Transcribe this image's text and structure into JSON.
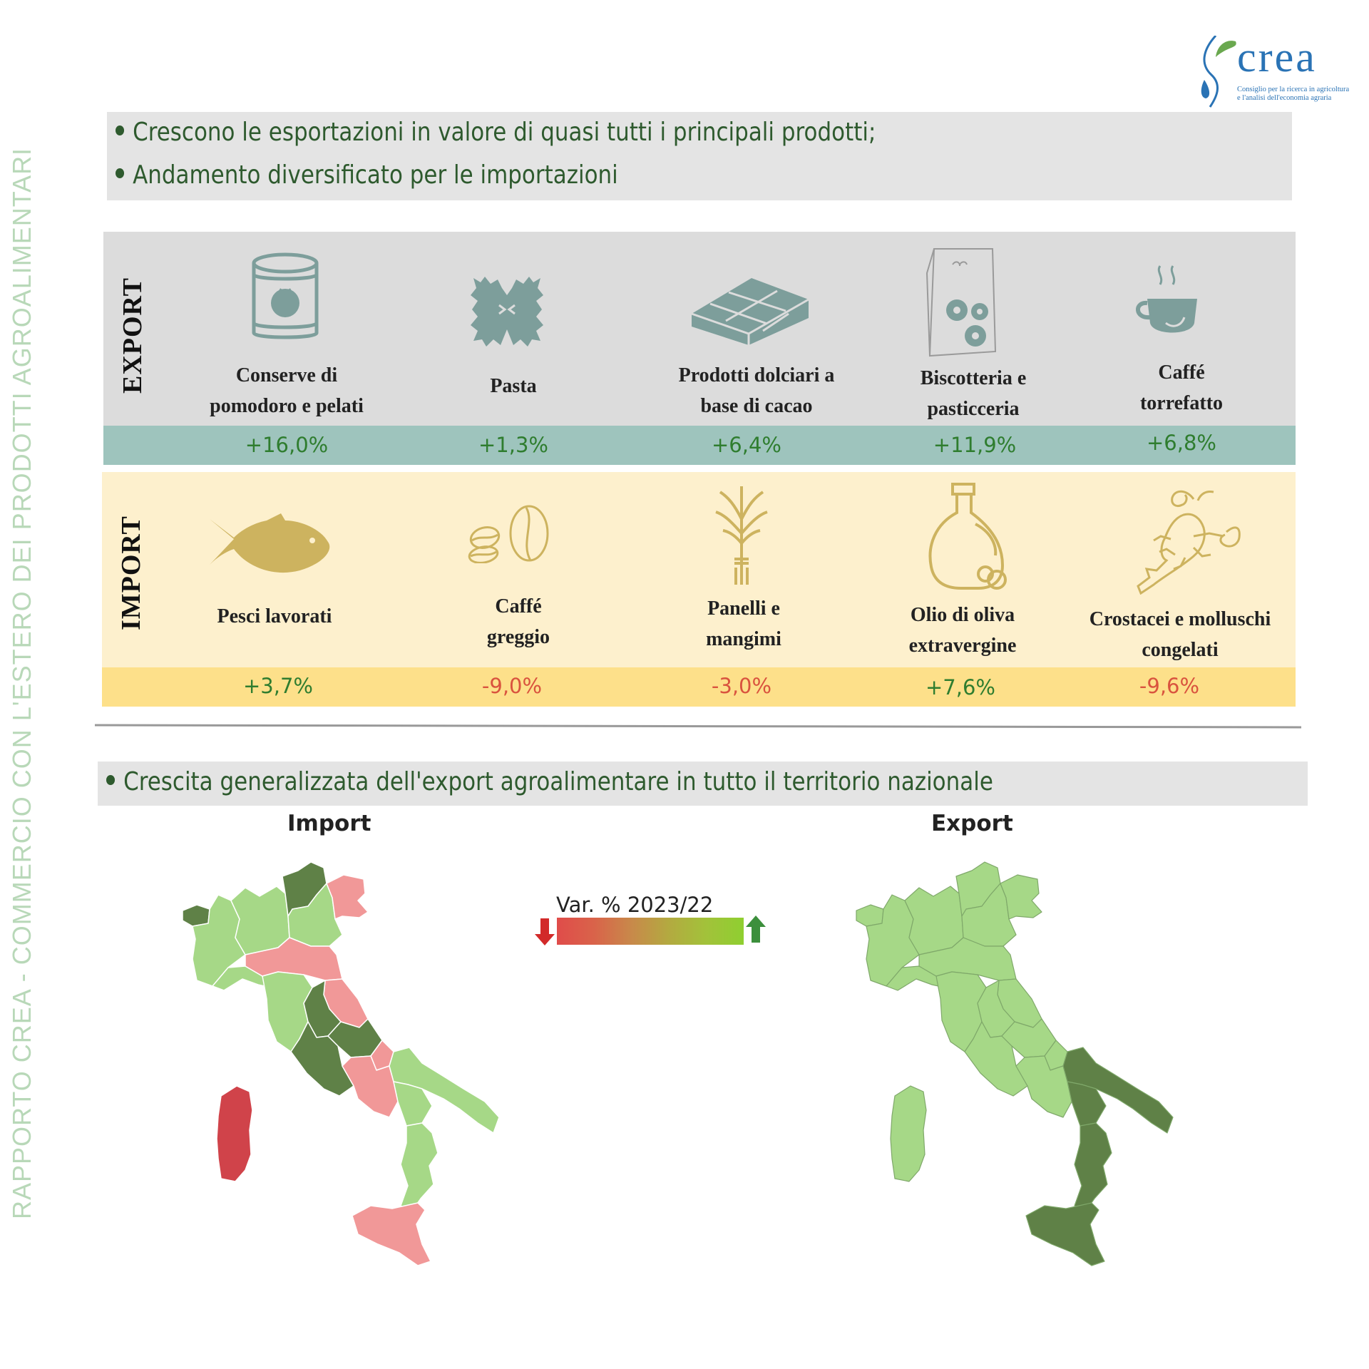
{
  "side_title": "RAPPORTO CREA - COMMERCIO CON L'ESTERO DEI PRODOTTI AGROALIMENTARI",
  "logo": {
    "name": "crea",
    "subtitle_line1": "Consiglio per la ricerca in agricoltura",
    "subtitle_line2": "e l'analisi dell'economia agraria"
  },
  "bullets": [
    "Crescono le esportazioni in valore di quasi tutti i principali prodotti;",
    "Andamento diversificato per le importazioni"
  ],
  "export": {
    "label": "EXPORT",
    "items": [
      {
        "line1": "Conserve di",
        "line2": "pomodoro e pelati",
        "change": "+16,0%",
        "trend": "up",
        "icon": "tomato-can-icon"
      },
      {
        "line1": "Pasta",
        "line2": "",
        "change": "+1,3%",
        "trend": "up",
        "icon": "farfalle-pasta-icon"
      },
      {
        "line1": "Prodotti dolciari a",
        "line2": "base di cacao",
        "change": "+6,4%",
        "trend": "up",
        "icon": "chocolate-bar-icon"
      },
      {
        "line1": "Biscotteria e",
        "line2": "pasticceria",
        "change": "+11,9%",
        "trend": "up",
        "icon": "cookie-bag-icon"
      },
      {
        "line1": "Caffé",
        "line2": "torrefatto",
        "change": "+6,8%",
        "trend": "up",
        "icon": "coffee-cup-icon"
      }
    ]
  },
  "import": {
    "label": "IMPORT",
    "items": [
      {
        "line1": "Pesci lavorati",
        "line2": "",
        "change": "+3,7%",
        "trend": "up",
        "icon": "fish-icon"
      },
      {
        "line1": "Caffé",
        "line2": "greggio",
        "change": "-9,0%",
        "trend": "down",
        "icon": "coffee-beans-icon"
      },
      {
        "line1": "Panelli e",
        "line2": "mangimi",
        "change": "-3,0%",
        "trend": "down",
        "icon": "wheat-bundle-icon"
      },
      {
        "line1": "Olio di oliva",
        "line2": "extravergine",
        "change": "+7,6%",
        "trend": "up",
        "icon": "olive-oil-jug-icon"
      },
      {
        "line1": "Crostacei e molluschi",
        "line2": "congelati",
        "change": "-9,6%",
        "trend": "down",
        "icon": "lobster-icon"
      }
    ]
  },
  "bullet_territory": "Crescita generalizzata dell'export agroalimentare in tutto il territorio nazionale",
  "maps": {
    "import_title": "Import",
    "export_title": "Export",
    "legend_title": "Var. % 2023/22"
  },
  "colors": {
    "dark_green": "#5f8147",
    "light_green": "#a6d887",
    "pink": "#f19898",
    "red": "#d0434a",
    "export_band": "#9ec4bd",
    "import_band": "#fde08a",
    "positive_text": "#2f7d2f",
    "negative_text": "#d9533e"
  }
}
